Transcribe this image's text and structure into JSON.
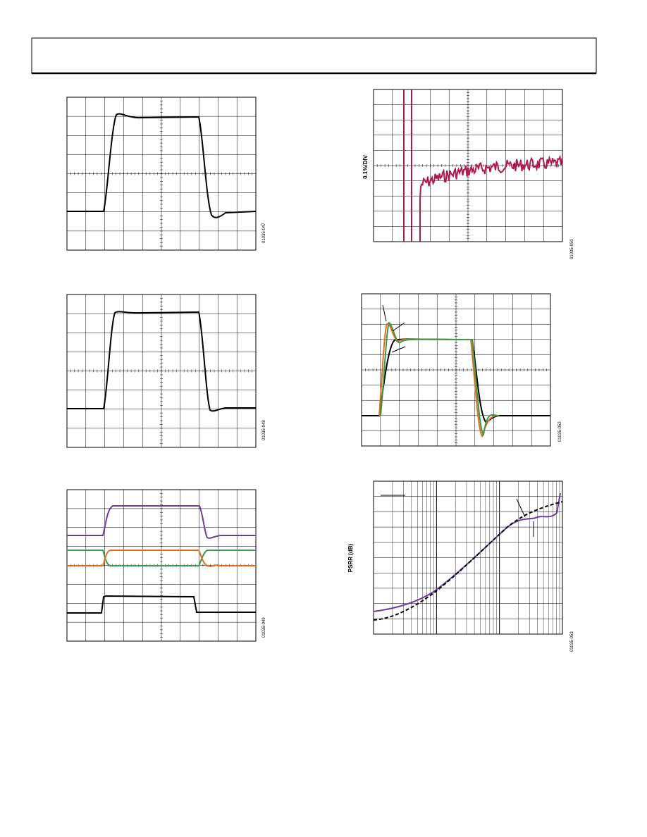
{
  "figures": [
    {
      "id": "01035-047"
    },
    {
      "id": "01035-048"
    },
    {
      "id": "01035-049"
    },
    {
      "id": "01035-050",
      "y_label": "0.1%/DIV"
    },
    {
      "id": "01035-052"
    },
    {
      "id": "01035-053",
      "y_label": "PSRR (dB)"
    }
  ]
}
